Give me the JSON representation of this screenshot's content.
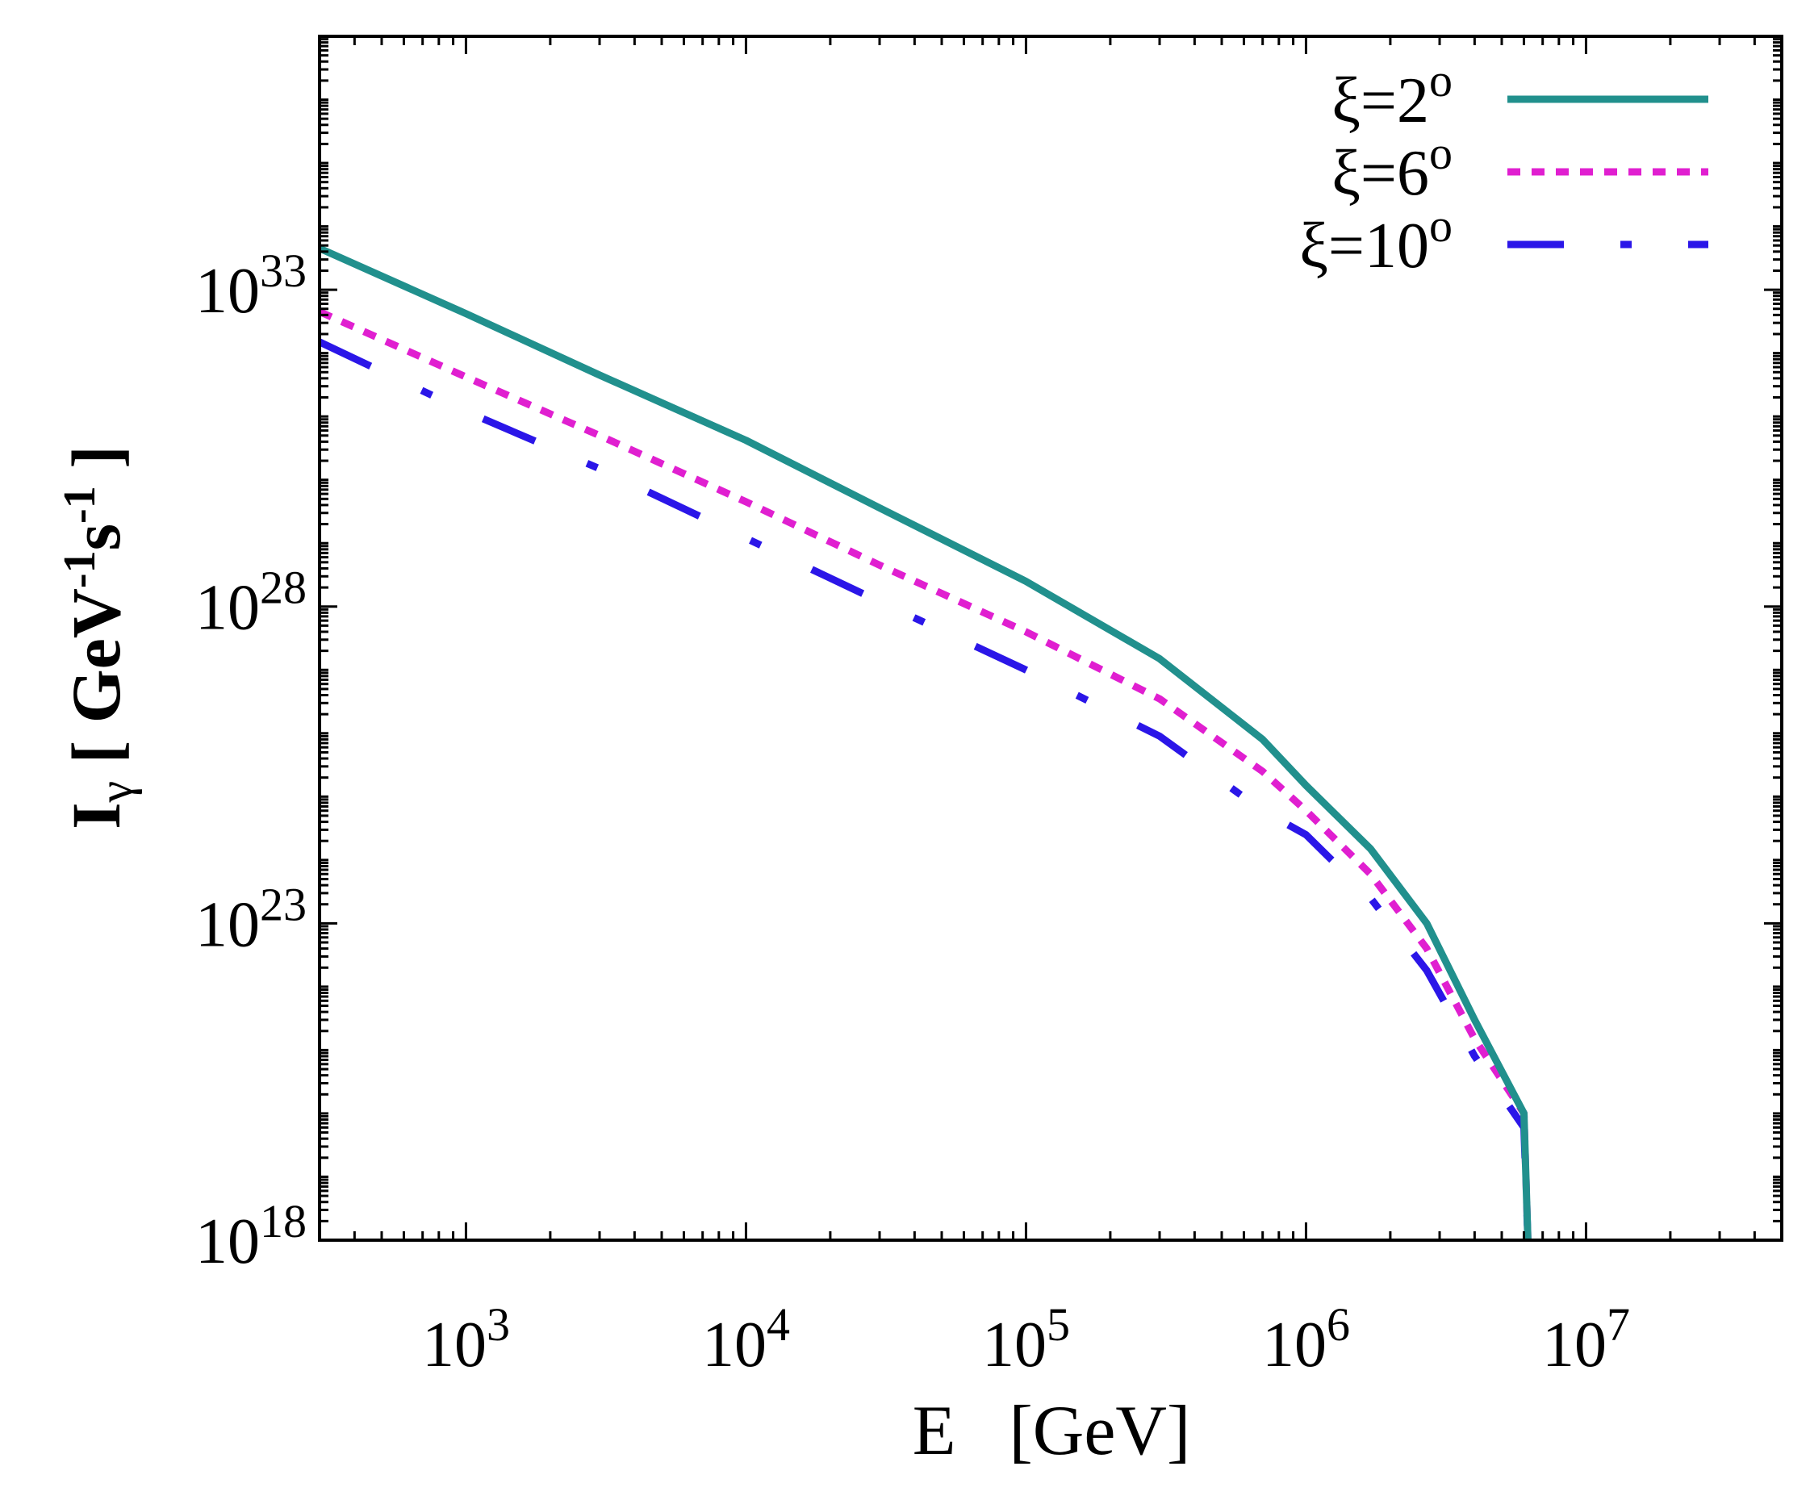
{
  "chart_data": {
    "type": "line",
    "title": "",
    "xlabel": "E   [GeV]",
    "ylabel": {
      "main": "I",
      "sub": "γ",
      "unit_open": " [ GeV",
      "exp1": "-1",
      "mid": "s",
      "exp2": "-1",
      "unit_close": " ]"
    },
    "xscale": "log",
    "yscale": "log",
    "xlim": [
      300,
      50000000
    ],
    "ylim": [
      1e+18,
      1e+37
    ],
    "x_ticks": [
      {
        "value": 1000,
        "base": "10",
        "exp": "3"
      },
      {
        "value": 10000,
        "base": "10",
        "exp": "4"
      },
      {
        "value": 100000,
        "base": "10",
        "exp": "5"
      },
      {
        "value": 1000000,
        "base": "10",
        "exp": "6"
      },
      {
        "value": 10000000,
        "base": "10",
        "exp": "7"
      }
    ],
    "y_ticks": [
      {
        "value": 1e+18,
        "base": "10",
        "exp": "18"
      },
      {
        "value": 1e+23,
        "base": "10",
        "exp": "23"
      },
      {
        "value": 1e+28,
        "base": "10",
        "exp": "28"
      },
      {
        "value": 1e+33,
        "base": "10",
        "exp": "33"
      }
    ],
    "legend_position": "top-right",
    "series": [
      {
        "name": "ξ=2°",
        "label_main": "ξ=2",
        "label_sup": "o",
        "color": "#21908d",
        "style": "solid",
        "points": [
          [
            300,
            4.5e+33
          ],
          [
            1000,
            4.2e+32
          ],
          [
            3000,
            4.5e+31
          ],
          [
            10000,
            4.2e+30
          ],
          [
            30000,
            3.6e+29
          ],
          [
            100000,
            2.5e+28
          ],
          [
            300000,
            1.5e+27
          ],
          [
            700000,
            8e+25
          ],
          [
            1000000,
            1.5e+25
          ],
          [
            1700000,
            1.5e+24
          ],
          [
            2700000,
            1e+23
          ],
          [
            4000000,
            3e+21
          ],
          [
            6000000,
            1e+20
          ],
          [
            6200000,
            1e+18
          ]
        ]
      },
      {
        "name": "ξ=6°",
        "label_main": "ξ=6",
        "label_sup": "o",
        "color": "#e01fd0",
        "style": "dotted",
        "points": [
          [
            300,
            4.5e+32
          ],
          [
            1000,
            4.2e+31
          ],
          [
            3000,
            5e+30
          ],
          [
            10000,
            4.5e+29
          ],
          [
            30000,
            4.5e+28
          ],
          [
            100000,
            4e+27
          ],
          [
            300000,
            3.5e+26
          ],
          [
            700000,
            2.5e+25
          ],
          [
            1000000,
            6e+24
          ],
          [
            1700000,
            6e+23
          ],
          [
            2700000,
            4e+22
          ],
          [
            4000000,
            1.5e+21
          ],
          [
            6000000,
            1e+20
          ],
          [
            6200000,
            1e+18
          ]
        ]
      },
      {
        "name": "ξ=10°",
        "label_main": "ξ=10",
        "label_sup": "o",
        "color": "#2b16e8",
        "style": "dash-dot",
        "points": [
          [
            300,
            1.5e+32
          ],
          [
            1000,
            1.2e+31
          ],
          [
            3000,
            1.5e+30
          ],
          [
            10000,
            1.2e+29
          ],
          [
            30000,
            1.2e+28
          ],
          [
            100000,
            1e+27
          ],
          [
            300000,
            9e+25
          ],
          [
            700000,
            6e+24
          ],
          [
            1000000,
            2.5e+24
          ],
          [
            1700000,
            2.5e+23
          ],
          [
            2700000,
            1.8e+22
          ],
          [
            4000000,
            8e+20
          ],
          [
            6000000,
            6e+19
          ],
          [
            6200000,
            1e+18
          ]
        ]
      }
    ]
  }
}
